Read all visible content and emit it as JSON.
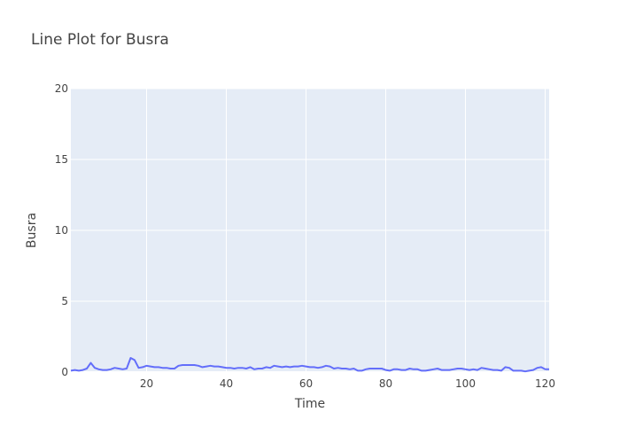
{
  "chart_data": {
    "type": "line",
    "title": "Line Plot for Busra",
    "xlabel": "Time",
    "ylabel": "Busra",
    "xlim": [
      1,
      121
    ],
    "ylim": [
      0,
      20
    ],
    "x_ticks": [
      20,
      40,
      60,
      80,
      100,
      120
    ],
    "y_ticks": [
      0,
      5,
      10,
      15,
      20
    ],
    "grid": true,
    "colors": {
      "plot_bg": "#E5ECF6",
      "grid": "#ffffff",
      "line": "#636EFA"
    },
    "series": [
      {
        "x": [
          1,
          2,
          3,
          4,
          5,
          6,
          7,
          8,
          9,
          10,
          11,
          12,
          13,
          14,
          15,
          16,
          17,
          18,
          19,
          20,
          21,
          22,
          23,
          24,
          25,
          26,
          27,
          28,
          29,
          30,
          31,
          32,
          33,
          34,
          35,
          36,
          37,
          38,
          39,
          40,
          41,
          42,
          43,
          44,
          45,
          46,
          47,
          48,
          49,
          50,
          51,
          52,
          53,
          54,
          55,
          56,
          57,
          58,
          59,
          60,
          61,
          62,
          63,
          64,
          65,
          66,
          67,
          68,
          69,
          70,
          71,
          72,
          73,
          74,
          75,
          76,
          77,
          78,
          79,
          80,
          81,
          82,
          83,
          84,
          85,
          86,
          87,
          88,
          89,
          90,
          91,
          92,
          93,
          94,
          95,
          96,
          97,
          98,
          99,
          100,
          101,
          102,
          103,
          104,
          105,
          106,
          107,
          108,
          109,
          110,
          111,
          112,
          113,
          114,
          115,
          116,
          117,
          118,
          119,
          120,
          121
        ],
        "values": [
          0.1,
          0.15,
          0.1,
          0.15,
          0.25,
          0.65,
          0.3,
          0.2,
          0.15,
          0.15,
          0.2,
          0.3,
          0.25,
          0.2,
          0.25,
          1.0,
          0.85,
          0.3,
          0.35,
          0.45,
          0.4,
          0.35,
          0.35,
          0.3,
          0.3,
          0.25,
          0.25,
          0.45,
          0.5,
          0.5,
          0.5,
          0.5,
          0.45,
          0.35,
          0.4,
          0.45,
          0.4,
          0.4,
          0.35,
          0.3,
          0.3,
          0.25,
          0.3,
          0.3,
          0.25,
          0.35,
          0.2,
          0.25,
          0.25,
          0.35,
          0.3,
          0.45,
          0.4,
          0.35,
          0.4,
          0.35,
          0.4,
          0.4,
          0.45,
          0.4,
          0.35,
          0.35,
          0.3,
          0.35,
          0.45,
          0.4,
          0.25,
          0.3,
          0.25,
          0.25,
          0.2,
          0.25,
          0.1,
          0.1,
          0.2,
          0.25,
          0.25,
          0.25,
          0.25,
          0.15,
          0.1,
          0.2,
          0.2,
          0.15,
          0.15,
          0.25,
          0.2,
          0.2,
          0.1,
          0.1,
          0.15,
          0.2,
          0.25,
          0.15,
          0.15,
          0.15,
          0.2,
          0.25,
          0.25,
          0.2,
          0.15,
          0.2,
          0.15,
          0.3,
          0.25,
          0.2,
          0.15,
          0.15,
          0.1,
          0.35,
          0.3,
          0.1,
          0.1,
          0.1,
          0.05,
          0.1,
          0.15,
          0.3,
          0.35,
          0.2,
          0.2
        ]
      }
    ]
  }
}
